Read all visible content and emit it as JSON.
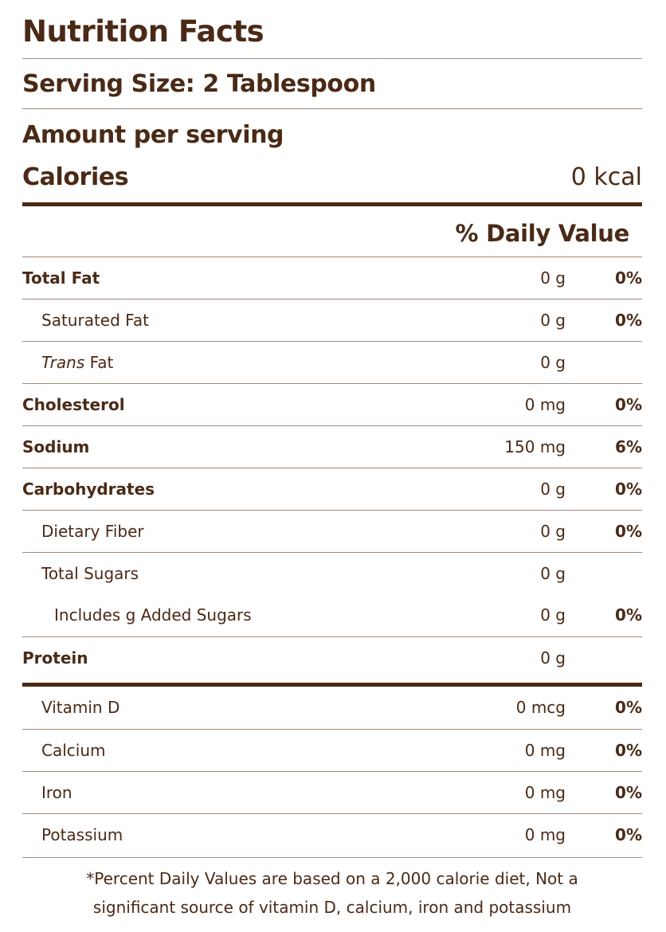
{
  "label": {
    "title": "Nutrition Facts",
    "serving_size": "Serving Size: 2 Tablespoon",
    "amount_per_serving": "Amount per serving",
    "calories_label": "Calories",
    "calories_value": "0 kcal",
    "daily_value_header": "% Daily Value"
  },
  "nutrients": [
    {
      "name": "Total Fat",
      "amount": "0 g",
      "pct": "0%"
    },
    {
      "name": "Saturated Fat",
      "amount": "0 g",
      "pct": "0%"
    },
    {
      "name_italic": "Trans",
      "name_rest": " Fat",
      "amount": "0 g",
      "pct": ""
    },
    {
      "name": "Cholesterol",
      "amount": "0 mg",
      "pct": "0%"
    },
    {
      "name": "Sodium",
      "amount": "150 mg",
      "pct": "6%"
    },
    {
      "name": "Carbohydrates",
      "amount": "0 g",
      "pct": "0%"
    },
    {
      "name": "Dietary Fiber",
      "amount": "0 g",
      "pct": "0%"
    },
    {
      "name": "Total Sugars",
      "amount": "0 g",
      "pct": ""
    },
    {
      "name": "Includes g Added Sugars",
      "amount": "0 g",
      "pct": "0%"
    },
    {
      "name": "Protein",
      "amount": "0 g",
      "pct": ""
    }
  ],
  "vitamins": [
    {
      "name": "Vitamin D",
      "amount": "0 mcg",
      "pct": "0%"
    },
    {
      "name": "Calcium",
      "amount": "0 mg",
      "pct": "0%"
    },
    {
      "name": "Iron",
      "amount": "0 mg",
      "pct": "0%"
    },
    {
      "name": "Potassium",
      "amount": "0 mg",
      "pct": "0%"
    }
  ],
  "footnote": {
    "line1": "*Percent Daily Values are based on a 2,000 calorie diet, Not a",
    "line2": "significant source of vitamin D, calcium, iron and potassium"
  },
  "colors": {
    "text": "#4a2a16",
    "rule_thin": "#a08a7c",
    "background": "#ffffff"
  }
}
